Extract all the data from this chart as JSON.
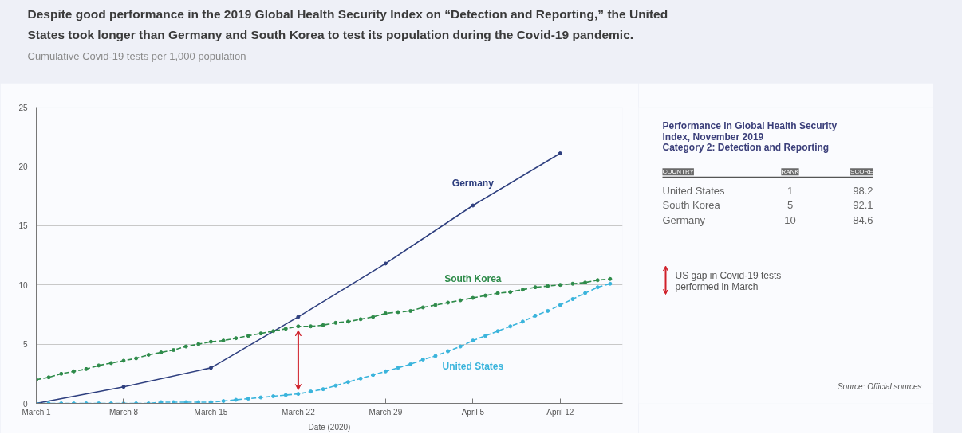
{
  "chart_data": [
    {
      "type": "line",
      "title": "Despite good performance in the 2019 Global Health Security Index on “Detection and Reporting,” the United States took longer than Germany and South Korea to test its population during the Covid-19 pandemic.",
      "subtitle": "Cumulative Covid-19 tests per 1,000 population",
      "xlabel": "Date (2020)",
      "x": [
        "2020-03-01",
        "2020-03-02",
        "2020-03-03",
        "2020-03-04",
        "2020-03-05",
        "2020-03-06",
        "2020-03-07",
        "2020-03-08",
        "2020-03-09",
        "2020-03-10",
        "2020-03-11",
        "2020-03-12",
        "2020-03-13",
        "2020-03-14",
        "2020-03-15",
        "2020-03-16",
        "2020-03-17",
        "2020-03-18",
        "2020-03-19",
        "2020-03-20",
        "2020-03-21",
        "2020-03-22",
        "2020-03-23",
        "2020-03-24",
        "2020-03-25",
        "2020-03-26",
        "2020-03-27",
        "2020-03-28",
        "2020-03-29",
        "2020-03-30",
        "2020-03-31",
        "2020-04-01",
        "2020-04-02",
        "2020-04-03",
        "2020-04-04",
        "2020-04-05",
        "2020-04-06",
        "2020-04-07",
        "2020-04-08",
        "2020-04-09",
        "2020-04-10",
        "2020-04-11",
        "2020-04-12",
        "2020-04-13",
        "2020-04-14",
        "2020-04-15",
        "2020-04-16"
      ],
      "series": [
        {
          "name": "Germany",
          "color": "#2e3f7f",
          "line_style": "solid",
          "x": [
            "2020-03-01",
            "2020-03-08",
            "2020-03-15",
            "2020-03-22",
            "2020-03-29",
            "2020-04-05",
            "2020-04-12"
          ],
          "values": [
            0.0,
            1.4,
            3.0,
            7.3,
            11.8,
            16.7,
            21.1
          ]
        },
        {
          "name": "South Korea",
          "color": "#2e8b4a",
          "line_style": "dashed",
          "values": [
            2.0,
            2.2,
            2.5,
            2.7,
            2.9,
            3.2,
            3.4,
            3.6,
            3.8,
            4.1,
            4.3,
            4.5,
            4.8,
            5.0,
            5.2,
            5.3,
            5.5,
            5.7,
            5.9,
            6.1,
            6.3,
            6.5,
            6.5,
            6.6,
            6.8,
            6.9,
            7.1,
            7.3,
            7.6,
            7.7,
            7.8,
            8.1,
            8.3,
            8.5,
            8.7,
            8.9,
            9.1,
            9.3,
            9.4,
            9.6,
            9.8,
            9.9,
            10.0,
            10.1,
            10.2,
            10.4,
            10.5
          ]
        },
        {
          "name": "United States",
          "color": "#3ab4dc",
          "line_style": "dashed",
          "values": [
            0.0,
            0.0,
            0.0,
            0.0,
            0.0,
            0.0,
            0.0,
            0.0,
            0.0,
            0.0,
            0.1,
            0.1,
            0.1,
            0.1,
            0.1,
            0.2,
            0.3,
            0.4,
            0.5,
            0.6,
            0.7,
            0.8,
            1.0,
            1.2,
            1.5,
            1.8,
            2.1,
            2.4,
            2.7,
            3.0,
            3.3,
            3.7,
            4.0,
            4.4,
            4.8,
            5.3,
            5.7,
            6.1,
            6.5,
            6.9,
            7.4,
            7.8,
            8.3,
            8.8,
            9.3,
            9.8,
            10.1
          ]
        }
      ],
      "marker": "circle",
      "xlim": [
        "2020-03-01",
        "2020-04-17"
      ],
      "xticks": [
        {
          "value": "2020-03-01",
          "label": "March 1"
        },
        {
          "value": "2020-03-08",
          "label": "March 8"
        },
        {
          "value": "2020-03-15",
          "label": "March 15"
        },
        {
          "value": "2020-03-22",
          "label": "March 22"
        },
        {
          "value": "2020-03-29",
          "label": "March 29"
        },
        {
          "value": "2020-04-05",
          "label": "April 5"
        },
        {
          "value": "2020-04-12",
          "label": "April 12"
        }
      ],
      "ylim": [
        0,
        25
      ],
      "yticks": [
        0,
        5,
        10,
        15,
        20,
        25
      ],
      "grid": "y",
      "annotations": [
        "Source: Official sources"
      ]
    },
    {
      "type": "other",
      "title": "Performance in Global Health Security Index, November 2019",
      "subtitle": "Category 2: Detection and Reporting",
      "xlabel": "COUNTRY",
      "categories": [
        "United States",
        "South Korea",
        "Germany"
      ],
      "series": [
        {
          "name": "RANK",
          "values": [
            1,
            5,
            10
          ]
        },
        {
          "name": "SCORE",
          "values": [
            98.2,
            92.1,
            84.6
          ]
        }
      ],
      "annotations": [
        "US gap in Covid-19 tests performed in March"
      ],
      "data_labels": true
    }
  ]
}
